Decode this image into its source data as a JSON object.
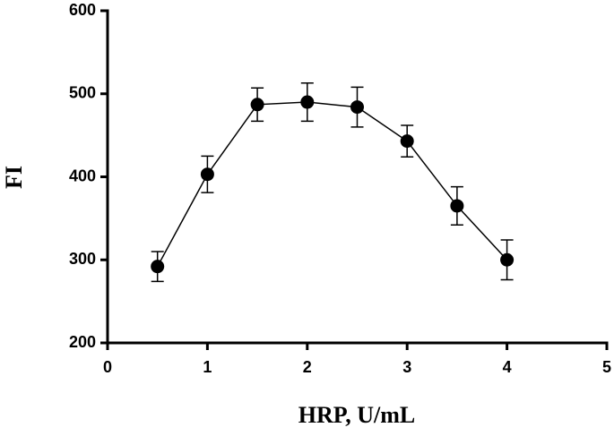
{
  "chart_data": {
    "type": "line",
    "x_label": "HRP, U/mL",
    "y_label": "FI",
    "x": [
      0.5,
      1,
      1.5,
      2,
      2.5,
      3,
      3.5,
      4
    ],
    "series": [
      {
        "values": [
          292,
          403,
          487,
          490,
          484,
          443,
          365,
          300
        ],
        "errors": [
          18,
          22,
          20,
          23,
          24,
          19,
          23,
          24
        ],
        "color": "#000000"
      }
    ],
    "xlim": [
      0,
      5
    ],
    "xticks": [
      0,
      1,
      2,
      3,
      4,
      5
    ],
    "ylim": [
      200,
      600
    ],
    "yticks": [
      200,
      300,
      400,
      500,
      600
    ]
  }
}
